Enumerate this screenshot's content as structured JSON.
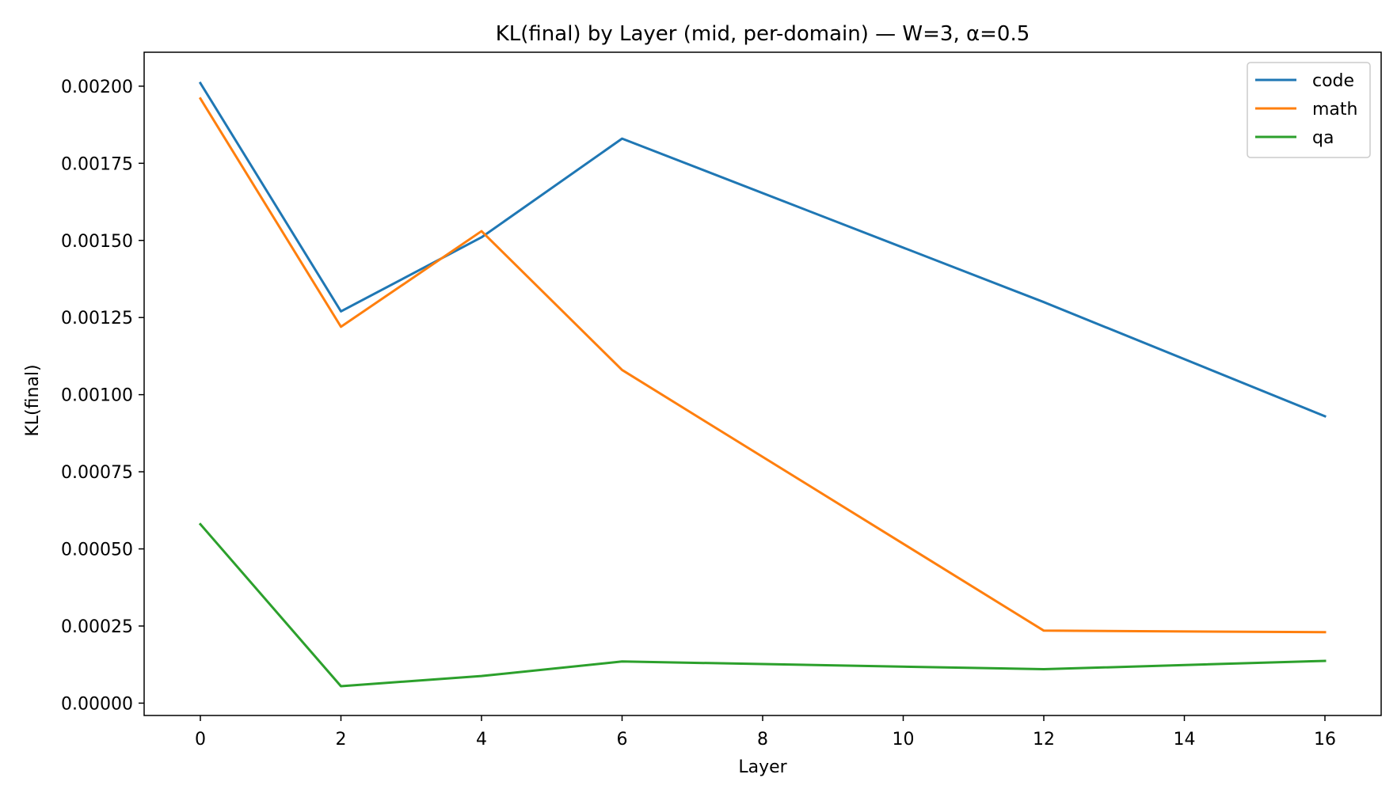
{
  "chart_data": {
    "type": "line",
    "title": "KL(final) by Layer (mid, per-domain) — W=3, α=0.5",
    "xlabel": "Layer",
    "ylabel": "KL(final)",
    "x": [
      0,
      2,
      4,
      6,
      12,
      16
    ],
    "xlim": [
      -0.8,
      16.8
    ],
    "ylim": [
      -4e-05,
      0.00211
    ],
    "xticks": [
      0,
      2,
      4,
      6,
      8,
      10,
      12,
      14,
      16
    ],
    "xtick_labels": [
      "0",
      "2",
      "4",
      "6",
      "8",
      "10",
      "12",
      "14",
      "16"
    ],
    "yticks": [
      0,
      0.00025,
      0.0005,
      0.00075,
      0.001,
      0.00125,
      0.0015,
      0.00175,
      0.002
    ],
    "ytick_labels": [
      "0.00000",
      "0.00025",
      "0.00050",
      "0.00075",
      "0.00100",
      "0.00125",
      "0.00150",
      "0.00175",
      "0.00200"
    ],
    "grid": false,
    "legend_position": "top-right",
    "series": [
      {
        "name": "code",
        "color": "#1f77b4",
        "values": [
          0.00201,
          0.00127,
          0.00151,
          0.00183,
          0.0013,
          0.00093
        ]
      },
      {
        "name": "math",
        "color": "#ff7f0e",
        "values": [
          0.00196,
          0.00122,
          0.00153,
          0.00108,
          0.000235,
          0.00023
        ]
      },
      {
        "name": "qa",
        "color": "#2ca02c",
        "values": [
          0.00058,
          5.5e-05,
          8.8e-05,
          0.000135,
          0.00011,
          0.000137
        ]
      }
    ]
  }
}
